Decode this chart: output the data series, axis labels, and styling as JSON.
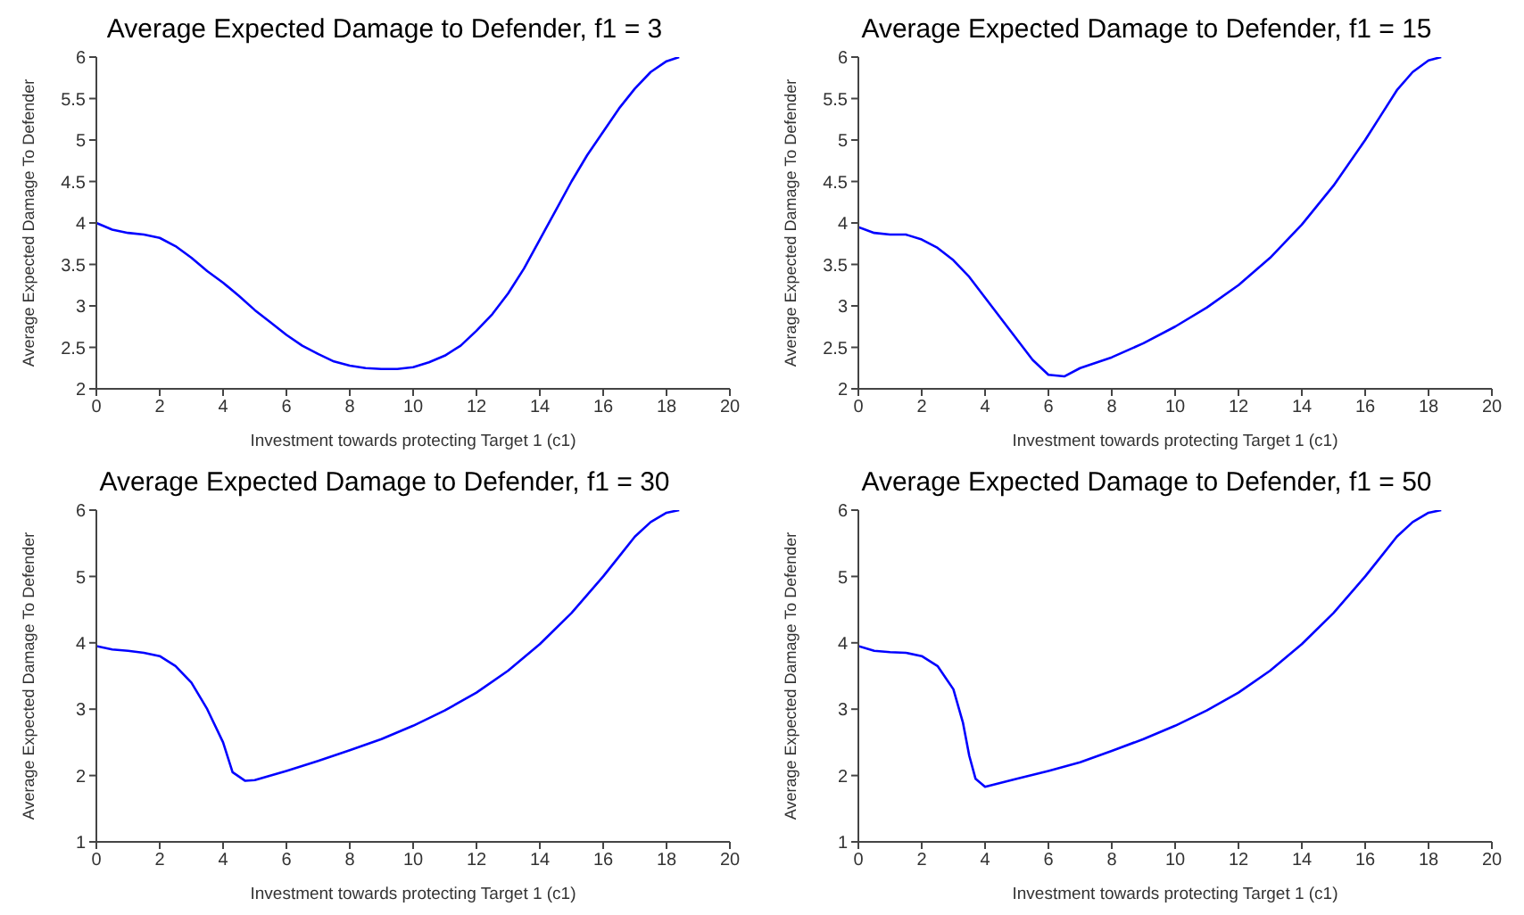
{
  "chart_data": [
    {
      "type": "line",
      "title": "Average Expected Damage to Defender, f1 = 3",
      "xlabel": "Investment towards protecting Target 1 (c1)",
      "ylabel": "Average Expected Damage To Defender",
      "xlim": [
        0,
        20
      ],
      "xticks": [
        0,
        2,
        4,
        6,
        8,
        10,
        12,
        14,
        16,
        18,
        20
      ],
      "ylim": [
        2,
        6
      ],
      "yticks": [
        2,
        2.5,
        3,
        3.5,
        4,
        4.5,
        5,
        5.5,
        6
      ],
      "grid": false,
      "marker": "none",
      "line_style": "solid",
      "series": [
        {
          "color": "#0000ff",
          "x": [
            0,
            0.5,
            1,
            1.5,
            2,
            2.5,
            3,
            3.5,
            4,
            4.5,
            5,
            5.5,
            6,
            6.5,
            7,
            7.5,
            8,
            8.5,
            9,
            9.5,
            10,
            10.5,
            11,
            11.5,
            12,
            12.5,
            13,
            13.5,
            14,
            14.5,
            15,
            15.5,
            16,
            16.5,
            17,
            17.5,
            18,
            18.4
          ],
          "values": [
            4.0,
            3.92,
            3.88,
            3.86,
            3.82,
            3.72,
            3.58,
            3.42,
            3.28,
            3.12,
            2.95,
            2.8,
            2.65,
            2.52,
            2.42,
            2.33,
            2.28,
            2.25,
            2.24,
            2.24,
            2.26,
            2.32,
            2.4,
            2.52,
            2.7,
            2.9,
            3.15,
            3.45,
            3.8,
            4.15,
            4.5,
            4.82,
            5.1,
            5.38,
            5.62,
            5.82,
            5.95,
            6.0
          ]
        }
      ]
    },
    {
      "type": "line",
      "title": "Average Expected Damage to Defender, f1 = 15",
      "xlabel": "Investment towards protecting Target 1 (c1)",
      "ylabel": "Average Expected Damage To Defender",
      "xlim": [
        0,
        20
      ],
      "xticks": [
        0,
        2,
        4,
        6,
        8,
        10,
        12,
        14,
        16,
        18,
        20
      ],
      "ylim": [
        2,
        6
      ],
      "yticks": [
        2,
        2.5,
        3,
        3.5,
        4,
        4.5,
        5,
        5.5,
        6
      ],
      "grid": false,
      "marker": "none",
      "line_style": "solid",
      "series": [
        {
          "color": "#0000ff",
          "x": [
            0,
            0.5,
            1,
            1.5,
            2,
            2.5,
            3,
            3.5,
            4,
            4.5,
            5,
            5.5,
            6,
            6.5,
            7,
            8,
            9,
            10,
            11,
            12,
            13,
            14,
            15,
            16,
            16.5,
            17,
            17.5,
            18,
            18.4
          ],
          "values": [
            3.95,
            3.88,
            3.86,
            3.86,
            3.8,
            3.7,
            3.55,
            3.35,
            3.1,
            2.85,
            2.6,
            2.35,
            2.17,
            2.15,
            2.25,
            2.38,
            2.55,
            2.75,
            2.98,
            3.25,
            3.58,
            3.98,
            4.45,
            5.0,
            5.3,
            5.6,
            5.82,
            5.96,
            6.0
          ]
        }
      ]
    },
    {
      "type": "line",
      "title": "Average Expected Damage to Defender, f1 = 30",
      "xlabel": "Investment towards protecting Target 1 (c1)",
      "ylabel": "Average Expected Damage To Defender",
      "xlim": [
        0,
        20
      ],
      "xticks": [
        0,
        2,
        4,
        6,
        8,
        10,
        12,
        14,
        16,
        18,
        20
      ],
      "ylim": [
        1,
        6
      ],
      "yticks": [
        1,
        2,
        3,
        4,
        5,
        6
      ],
      "grid": false,
      "marker": "none",
      "line_style": "solid",
      "series": [
        {
          "color": "#0000ff",
          "x": [
            0,
            0.5,
            1,
            1.5,
            2,
            2.5,
            3,
            3.5,
            4,
            4.3,
            4.7,
            5,
            6,
            7,
            8,
            9,
            10,
            11,
            12,
            13,
            14,
            15,
            16,
            16.5,
            17,
            17.5,
            18,
            18.4
          ],
          "values": [
            3.95,
            3.9,
            3.88,
            3.85,
            3.8,
            3.65,
            3.4,
            3.0,
            2.5,
            2.05,
            1.92,
            1.93,
            2.07,
            2.22,
            2.38,
            2.55,
            2.75,
            2.98,
            3.25,
            3.58,
            3.98,
            4.45,
            5.0,
            5.3,
            5.6,
            5.82,
            5.96,
            6.0
          ]
        }
      ]
    },
    {
      "type": "line",
      "title": "Average Expected Damage to Defender, f1 = 50",
      "xlabel": "Investment towards protecting Target 1 (c1)",
      "ylabel": "Average Expected Damage To Defender",
      "xlim": [
        0,
        20
      ],
      "xticks": [
        0,
        2,
        4,
        6,
        8,
        10,
        12,
        14,
        16,
        18,
        20
      ],
      "ylim": [
        1,
        6
      ],
      "yticks": [
        1,
        2,
        3,
        4,
        5,
        6
      ],
      "grid": false,
      "marker": "none",
      "line_style": "solid",
      "series": [
        {
          "color": "#0000ff",
          "x": [
            0,
            0.5,
            1,
            1.5,
            2,
            2.5,
            3,
            3.3,
            3.5,
            3.7,
            4,
            5,
            6,
            7,
            8,
            9,
            10,
            11,
            12,
            13,
            14,
            15,
            16,
            16.5,
            17,
            17.5,
            18,
            18.4
          ],
          "values": [
            3.95,
            3.88,
            3.86,
            3.85,
            3.8,
            3.65,
            3.3,
            2.8,
            2.3,
            1.95,
            1.83,
            1.95,
            2.07,
            2.2,
            2.37,
            2.55,
            2.75,
            2.98,
            3.25,
            3.58,
            3.98,
            4.45,
            5.0,
            5.3,
            5.6,
            5.82,
            5.96,
            6.0
          ]
        }
      ]
    }
  ]
}
